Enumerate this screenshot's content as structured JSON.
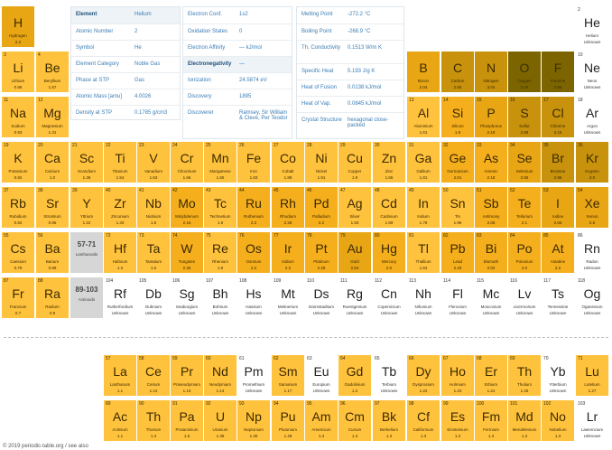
{
  "colors": {
    "lightest": "#ffd04d",
    "light": "#ffc23d",
    "mid": "#f5ae1c",
    "dark": "#e8a514",
    "darker": "#c8920c",
    "darkest": "#7c6500",
    "unknown": "#ffffff",
    "placeholder": "#d6d6d6"
  },
  "elements": [
    {
      "n": "",
      "s": "H",
      "name": "Hydrogen",
      "en": "2.2",
      "c": "dark",
      "r": 1,
      "col": 1
    },
    {
      "n": "2",
      "s": "He",
      "name": "Helium",
      "en": "Unknown",
      "c": "un",
      "r": 1,
      "col": 18
    },
    {
      "n": "3",
      "s": "Li",
      "name": "Lithium",
      "en": "0.98",
      "c": "light",
      "r": 2,
      "col": 1
    },
    {
      "n": "4",
      "s": "Be",
      "name": "Beryllium",
      "en": "1.57",
      "c": "light",
      "r": 2,
      "col": 2
    },
    {
      "n": "",
      "s": "B",
      "name": "Boron",
      "en": "2.04",
      "c": "dark",
      "r": 2,
      "col": 13
    },
    {
      "n": "",
      "s": "C",
      "name": "Carbon",
      "en": "2.55",
      "c": "darker",
      "r": 2,
      "col": 14
    },
    {
      "n": "",
      "s": "N",
      "name": "Nitrogen",
      "en": "3.04",
      "c": "darker",
      "r": 2,
      "col": 15
    },
    {
      "n": "",
      "s": "O",
      "name": "Oxygen",
      "en": "3.44",
      "c": "darkest",
      "r": 2,
      "col": 16
    },
    {
      "n": "",
      "s": "F",
      "name": "Fluorine",
      "en": "3.98",
      "c": "darkest",
      "r": 2,
      "col": 17
    },
    {
      "n": "10",
      "s": "Ne",
      "name": "Neon",
      "en": "Unknown",
      "c": "un",
      "r": 2,
      "col": 18
    },
    {
      "n": "11",
      "s": "Na",
      "name": "Sodium",
      "en": "0.93",
      "c": "light",
      "r": 3,
      "col": 1
    },
    {
      "n": "12",
      "s": "Mg",
      "name": "Magnesium",
      "en": "1.31",
      "c": "light",
      "r": 3,
      "col": 2
    },
    {
      "n": "13",
      "s": "Al",
      "name": "Aluminium",
      "en": "1.61",
      "c": "light",
      "r": 3,
      "col": 13
    },
    {
      "n": "14",
      "s": "Si",
      "name": "Silicon",
      "en": "1.9",
      "c": "mid",
      "r": 3,
      "col": 14
    },
    {
      "n": "15",
      "s": "P",
      "name": "Phosphorus",
      "en": "2.19",
      "c": "dark",
      "r": 3,
      "col": 15
    },
    {
      "n": "16",
      "s": "S",
      "name": "Sulfur",
      "en": "2.58",
      "c": "darker",
      "r": 3,
      "col": 16
    },
    {
      "n": "17",
      "s": "Cl",
      "name": "Chlorine",
      "en": "3.16",
      "c": "darker",
      "r": 3,
      "col": 17
    },
    {
      "n": "18",
      "s": "Ar",
      "name": "Argon",
      "en": "Unknown",
      "c": "un",
      "r": 3,
      "col": 18
    },
    {
      "n": "19",
      "s": "K",
      "name": "Potassium",
      "en": "0.82",
      "c": "light",
      "r": 4,
      "col": 1
    },
    {
      "n": "20",
      "s": "Ca",
      "name": "Calcium",
      "en": "1.0",
      "c": "light",
      "r": 4,
      "col": 2
    },
    {
      "n": "21",
      "s": "Sc",
      "name": "Scandium",
      "en": "1.36",
      "c": "light",
      "r": 4,
      "col": 3
    },
    {
      "n": "22",
      "s": "Ti",
      "name": "Titanium",
      "en": "1.54",
      "c": "light",
      "r": 4,
      "col": 4
    },
    {
      "n": "23",
      "s": "V",
      "name": "Vanadium",
      "en": "1.63",
      "c": "light",
      "r": 4,
      "col": 5
    },
    {
      "n": "24",
      "s": "Cr",
      "name": "Chromium",
      "en": "1.66",
      "c": "light",
      "r": 4,
      "col": 6
    },
    {
      "n": "25",
      "s": "Mn",
      "name": "Manganese",
      "en": "1.55",
      "c": "light",
      "r": 4,
      "col": 7
    },
    {
      "n": "26",
      "s": "Fe",
      "name": "Iron",
      "en": "1.83",
      "c": "light",
      "r": 4,
      "col": 8
    },
    {
      "n": "27",
      "s": "Co",
      "name": "Cobalt",
      "en": "1.88",
      "c": "light",
      "r": 4,
      "col": 9
    },
    {
      "n": "28",
      "s": "Ni",
      "name": "Nickel",
      "en": "1.91",
      "c": "light",
      "r": 4,
      "col": 10
    },
    {
      "n": "29",
      "s": "Cu",
      "name": "Copper",
      "en": "1.9",
      "c": "light",
      "r": 4,
      "col": 11
    },
    {
      "n": "30",
      "s": "Zn",
      "name": "Zinc",
      "en": "1.65",
      "c": "light",
      "r": 4,
      "col": 12
    },
    {
      "n": "31",
      "s": "Ga",
      "name": "Gallium",
      "en": "1.81",
      "c": "light",
      "r": 4,
      "col": 13
    },
    {
      "n": "32",
      "s": "Ge",
      "name": "Germanium",
      "en": "2.01",
      "c": "mid",
      "r": 4,
      "col": 14
    },
    {
      "n": "33",
      "s": "As",
      "name": "Arsenic",
      "en": "2.18",
      "c": "mid",
      "r": 4,
      "col": 15
    },
    {
      "n": "34",
      "s": "Se",
      "name": "Selenium",
      "en": "2.55",
      "c": "dark",
      "r": 4,
      "col": 16
    },
    {
      "n": "35",
      "s": "Br",
      "name": "Bromine",
      "en": "2.96",
      "c": "darker",
      "r": 4,
      "col": 17
    },
    {
      "n": "36",
      "s": "Kr",
      "name": "Krypton",
      "en": "3.0",
      "c": "darker",
      "r": 4,
      "col": 18
    },
    {
      "n": "37",
      "s": "Rb",
      "name": "Rubidium",
      "en": "0.82",
      "c": "light",
      "r": 5,
      "col": 1
    },
    {
      "n": "38",
      "s": "Sr",
      "name": "Strontium",
      "en": "0.95",
      "c": "light",
      "r": 5,
      "col": 2
    },
    {
      "n": "39",
      "s": "Y",
      "name": "Yttrium",
      "en": "1.22",
      "c": "light",
      "r": 5,
      "col": 3
    },
    {
      "n": "40",
      "s": "Zr",
      "name": "Zirconium",
      "en": "1.33",
      "c": "light",
      "r": 5,
      "col": 4
    },
    {
      "n": "41",
      "s": "Nb",
      "name": "Niobium",
      "en": "1.6",
      "c": "light",
      "r": 5,
      "col": 5
    },
    {
      "n": "42",
      "s": "Mo",
      "name": "Molybdenum",
      "en": "2.16",
      "c": "mid",
      "r": 5,
      "col": 6
    },
    {
      "n": "43",
      "s": "Tc",
      "name": "Technetium",
      "en": "1.9",
      "c": "light",
      "r": 5,
      "col": 7
    },
    {
      "n": "44",
      "s": "Ru",
      "name": "Ruthenium",
      "en": "2.2",
      "c": "mid",
      "r": 5,
      "col": 8
    },
    {
      "n": "45",
      "s": "Rh",
      "name": "Rhodium",
      "en": "2.28",
      "c": "mid",
      "r": 5,
      "col": 9
    },
    {
      "n": "46",
      "s": "Pd",
      "name": "Palladium",
      "en": "2.2",
      "c": "mid",
      "r": 5,
      "col": 10
    },
    {
      "n": "47",
      "s": "Ag",
      "name": "Silver",
      "en": "1.93",
      "c": "light",
      "r": 5,
      "col": 11
    },
    {
      "n": "48",
      "s": "Cd",
      "name": "Cadmium",
      "en": "1.69",
      "c": "light",
      "r": 5,
      "col": 12
    },
    {
      "n": "49",
      "s": "In",
      "name": "Indium",
      "en": "1.78",
      "c": "light",
      "r": 5,
      "col": 13
    },
    {
      "n": "50",
      "s": "Sn",
      "name": "Tin",
      "en": "1.96",
      "c": "light",
      "r": 5,
      "col": 14
    },
    {
      "n": "51",
      "s": "Sb",
      "name": "Antimony",
      "en": "2.05",
      "c": "mid",
      "r": 5,
      "col": 15
    },
    {
      "n": "52",
      "s": "Te",
      "name": "Tellurium",
      "en": "2.1",
      "c": "mid",
      "r": 5,
      "col": 16
    },
    {
      "n": "53",
      "s": "I",
      "name": "Iodine",
      "en": "2.66",
      "c": "dark",
      "r": 5,
      "col": 17
    },
    {
      "n": "54",
      "s": "Xe",
      "name": "Xenon",
      "en": "2.6",
      "c": "dark",
      "r": 5,
      "col": 18
    },
    {
      "n": "55",
      "s": "Cs",
      "name": "Caesium",
      "en": "0.79",
      "c": "light",
      "r": 6,
      "col": 1
    },
    {
      "n": "56",
      "s": "Ba",
      "name": "Barium",
      "en": "0.89",
      "c": "light",
      "r": 6,
      "col": 2
    },
    {
      "n": "72",
      "s": "Hf",
      "name": "Hafnium",
      "en": "1.3",
      "c": "light",
      "r": 6,
      "col": 4
    },
    {
      "n": "73",
      "s": "Ta",
      "name": "Tantalum",
      "en": "1.5",
      "c": "light",
      "r": 6,
      "col": 5
    },
    {
      "n": "74",
      "s": "W",
      "name": "Tungsten",
      "en": "2.36",
      "c": "mid",
      "r": 6,
      "col": 6
    },
    {
      "n": "75",
      "s": "Re",
      "name": "Rhenium",
      "en": "1.9",
      "c": "light",
      "r": 6,
      "col": 7
    },
    {
      "n": "76",
      "s": "Os",
      "name": "Osmium",
      "en": "2.2",
      "c": "mid",
      "r": 6,
      "col": 8
    },
    {
      "n": "77",
      "s": "Ir",
      "name": "Iridium",
      "en": "2.2",
      "c": "mid",
      "r": 6,
      "col": 9
    },
    {
      "n": "78",
      "s": "Pt",
      "name": "Platinum",
      "en": "2.28",
      "c": "mid",
      "r": 6,
      "col": 10
    },
    {
      "n": "79",
      "s": "Au",
      "name": "Gold",
      "en": "2.54",
      "c": "dark",
      "r": 6,
      "col": 11
    },
    {
      "n": "80",
      "s": "Hg",
      "name": "Mercury",
      "en": "2.0",
      "c": "mid",
      "r": 6,
      "col": 12
    },
    {
      "n": "81",
      "s": "Tl",
      "name": "Thallium",
      "en": "1.62",
      "c": "light",
      "r": 6,
      "col": 13
    },
    {
      "n": "82",
      "s": "Pb",
      "name": "Lead",
      "en": "2.33",
      "c": "mid",
      "r": 6,
      "col": 14
    },
    {
      "n": "83",
      "s": "Bi",
      "name": "Bismuth",
      "en": "2.02",
      "c": "mid",
      "r": 6,
      "col": 15
    },
    {
      "n": "84",
      "s": "Po",
      "name": "Polonium",
      "en": "2.0",
      "c": "mid",
      "r": 6,
      "col": 16
    },
    {
      "n": "85",
      "s": "At",
      "name": "Astatine",
      "en": "2.2",
      "c": "mid",
      "r": 6,
      "col": 17
    },
    {
      "n": "86",
      "s": "Rn",
      "name": "Radon",
      "en": "Unknown",
      "c": "un",
      "r": 6,
      "col": 18
    },
    {
      "n": "87",
      "s": "Fr",
      "name": "Francium",
      "en": "0.7",
      "c": "light",
      "r": 7,
      "col": 1
    },
    {
      "n": "88",
      "s": "Ra",
      "name": "Radium",
      "en": "0.9",
      "c": "light",
      "r": 7,
      "col": 2
    },
    {
      "n": "104",
      "s": "Rf",
      "name": "Rutherfordium",
      "en": "Unknown",
      "c": "un",
      "r": 7,
      "col": 4
    },
    {
      "n": "105",
      "s": "Db",
      "name": "Dubnium",
      "en": "Unknown",
      "c": "un",
      "r": 7,
      "col": 5
    },
    {
      "n": "106",
      "s": "Sg",
      "name": "Seaborgium",
      "en": "Unknown",
      "c": "un",
      "r": 7,
      "col": 6
    },
    {
      "n": "107",
      "s": "Bh",
      "name": "Bohrium",
      "en": "Unknown",
      "c": "un",
      "r": 7,
      "col": 7
    },
    {
      "n": "108",
      "s": "Hs",
      "name": "Hassium",
      "en": "Unknown",
      "c": "un",
      "r": 7,
      "col": 8
    },
    {
      "n": "109",
      "s": "Mt",
      "name": "Meitnerium",
      "en": "Unknown",
      "c": "un",
      "r": 7,
      "col": 9
    },
    {
      "n": "110",
      "s": "Ds",
      "name": "Darmstadtium",
      "en": "Unknown",
      "c": "un",
      "r": 7,
      "col": 10
    },
    {
      "n": "111",
      "s": "Rg",
      "name": "Roentgenium",
      "en": "Unknown",
      "c": "un",
      "r": 7,
      "col": 11
    },
    {
      "n": "112",
      "s": "Cn",
      "name": "Copernicium",
      "en": "Unknown",
      "c": "un",
      "r": 7,
      "col": 12
    },
    {
      "n": "113",
      "s": "Nh",
      "name": "Nihonium",
      "en": "Unknown",
      "c": "un",
      "r": 7,
      "col": 13
    },
    {
      "n": "114",
      "s": "Fl",
      "name": "Flerovium",
      "en": "Unknown",
      "c": "un",
      "r": 7,
      "col": 14
    },
    {
      "n": "115",
      "s": "Mc",
      "name": "Moscovium",
      "en": "Unknown",
      "c": "un",
      "r": 7,
      "col": 15
    },
    {
      "n": "116",
      "s": "Lv",
      "name": "Livermorium",
      "en": "Unknown",
      "c": "un",
      "r": 7,
      "col": 16
    },
    {
      "n": "117",
      "s": "Ts",
      "name": "Tennessine",
      "en": "Unknown",
      "c": "un",
      "r": 7,
      "col": 17
    },
    {
      "n": "118",
      "s": "Og",
      "name": "Oganesson",
      "en": "Unknown",
      "c": "un",
      "r": 7,
      "col": 18
    },
    {
      "n": "57",
      "s": "La",
      "name": "Lanthanum",
      "en": "1.1",
      "c": "light",
      "r": 9,
      "col": 4
    },
    {
      "n": "58",
      "s": "Ce",
      "name": "Cerium",
      "en": "1.12",
      "c": "light",
      "r": 9,
      "col": 5
    },
    {
      "n": "59",
      "s": "Pr",
      "name": "Praseodymium",
      "en": "1.13",
      "c": "light",
      "r": 9,
      "col": 6
    },
    {
      "n": "60",
      "s": "Nd",
      "name": "Neodymium",
      "en": "1.14",
      "c": "light",
      "r": 9,
      "col": 7
    },
    {
      "n": "61",
      "s": "Pm",
      "name": "Promethium",
      "en": "Unknown",
      "c": "un",
      "r": 9,
      "col": 8
    },
    {
      "n": "62",
      "s": "Sm",
      "name": "Samarium",
      "en": "1.17",
      "c": "light",
      "r": 9,
      "col": 9
    },
    {
      "n": "63",
      "s": "Eu",
      "name": "Europium",
      "en": "Unknown",
      "c": "un",
      "r": 9,
      "col": 10
    },
    {
      "n": "64",
      "s": "Gd",
      "name": "Gadolinium",
      "en": "1.2",
      "c": "light",
      "r": 9,
      "col": 11
    },
    {
      "n": "65",
      "s": "Tb",
      "name": "Terbium",
      "en": "Unknown",
      "c": "un",
      "r": 9,
      "col": 12
    },
    {
      "n": "66",
      "s": "Dy",
      "name": "Dysprosium",
      "en": "1.22",
      "c": "light",
      "r": 9,
      "col": 13
    },
    {
      "n": "67",
      "s": "Ho",
      "name": "Holmium",
      "en": "1.23",
      "c": "light",
      "r": 9,
      "col": 14
    },
    {
      "n": "68",
      "s": "Er",
      "name": "Erbium",
      "en": "1.24",
      "c": "light",
      "r": 9,
      "col": 15
    },
    {
      "n": "69",
      "s": "Th",
      "name": "Thulium",
      "en": "1.25",
      "c": "light",
      "r": 9,
      "col": 16
    },
    {
      "n": "70",
      "s": "Yb",
      "name": "Ytterbium",
      "en": "Unknown",
      "c": "un",
      "r": 9,
      "col": 17
    },
    {
      "n": "71",
      "s": "Lu",
      "name": "Lutetium",
      "en": "1.27",
      "c": "light",
      "r": 9,
      "col": 18
    },
    {
      "n": "89",
      "s": "Ac",
      "name": "Actinium",
      "en": "1.1",
      "c": "light",
      "r": 10,
      "col": 4
    },
    {
      "n": "90",
      "s": "Th",
      "name": "Thorium",
      "en": "1.3",
      "c": "light",
      "r": 10,
      "col": 5
    },
    {
      "n": "91",
      "s": "Pa",
      "name": "Protactinium",
      "en": "1.5",
      "c": "light",
      "r": 10,
      "col": 6
    },
    {
      "n": "92",
      "s": "U",
      "name": "Uranium",
      "en": "1.38",
      "c": "light",
      "r": 10,
      "col": 7
    },
    {
      "n": "93",
      "s": "Np",
      "name": "Neptunium",
      "en": "1.36",
      "c": "light",
      "r": 10,
      "col": 8
    },
    {
      "n": "94",
      "s": "Pu",
      "name": "Plutonium",
      "en": "1.28",
      "c": "light",
      "r": 10,
      "col": 9
    },
    {
      "n": "95",
      "s": "Am",
      "name": "Americium",
      "en": "1.3",
      "c": "light",
      "r": 10,
      "col": 10
    },
    {
      "n": "96",
      "s": "Cm",
      "name": "Curium",
      "en": "1.3",
      "c": "light",
      "r": 10,
      "col": 11
    },
    {
      "n": "97",
      "s": "Bk",
      "name": "Berkelium",
      "en": "1.3",
      "c": "light",
      "r": 10,
      "col": 12
    },
    {
      "n": "98",
      "s": "Cf",
      "name": "Californium",
      "en": "1.3",
      "c": "light",
      "r": 10,
      "col": 13
    },
    {
      "n": "99",
      "s": "Es",
      "name": "Einsteinium",
      "en": "1.3",
      "c": "light",
      "r": 10,
      "col": 14
    },
    {
      "n": "100",
      "s": "Fm",
      "name": "Fermium",
      "en": "1.3",
      "c": "light",
      "r": 10,
      "col": 15
    },
    {
      "n": "101",
      "s": "Md",
      "name": "Mendelevium",
      "en": "1.3",
      "c": "light",
      "r": 10,
      "col": 16
    },
    {
      "n": "102",
      "s": "No",
      "name": "Nobelium",
      "en": "1.3",
      "c": "light",
      "r": 10,
      "col": 17
    },
    {
      "n": "103",
      "s": "Lr",
      "name": "Lawrencium",
      "en": "Unknown",
      "c": "un",
      "r": 10,
      "col": 18
    }
  ],
  "placeholders": [
    {
      "s": "57-71",
      "name": "Lanthanoids",
      "r": 6,
      "col": 3
    },
    {
      "s": "89-103",
      "name": "Actinoids",
      "r": 7,
      "col": 3
    }
  ],
  "info": {
    "panel1": [
      {
        "label": "Element",
        "value": "Helium",
        "hl": true
      },
      {
        "label": "Atomic Number",
        "value": "2"
      },
      {
        "label": "Symbol",
        "value": "He"
      },
      {
        "label": "Element Category",
        "value": "Noble Gas"
      },
      {
        "label": "Phase at STP",
        "value": "Gas"
      },
      {
        "label": "Atomic Mass [amu]",
        "value": "4.0026"
      },
      {
        "label": "Density at STP",
        "value": "0.1785 g/cm3"
      }
    ],
    "panel2": [
      {
        "label": "Electron Conf.",
        "value": "1s2"
      },
      {
        "label": "Oxidation States",
        "value": "0"
      },
      {
        "label": "Electron Affinity",
        "value": "— kJ/mol"
      },
      {
        "label": "Electronegativity",
        "value": "—",
        "hl": true
      },
      {
        "label": "Ionization",
        "value": "24.5874 eV"
      },
      {
        "label": "Discovery",
        "value": "1895"
      },
      {
        "label": "Discoverer",
        "value": "Ramsey, Sir William & Cleve, Per Teodor"
      }
    ],
    "panel3": [
      {
        "label": "Melting Point",
        "value": "-272.2 °C"
      },
      {
        "label": "Boiling Point",
        "value": "-268.9 °C"
      },
      {
        "label": "Th. Conductivity",
        "value": "0.1513 W/m K"
      },
      {
        "label": "Specific Heat",
        "value": "5.193 J/g K"
      },
      {
        "label": "Heat of Fusion",
        "value": "0.0138 kJ/mol"
      },
      {
        "label": "Heat of Vap.",
        "value": "0.0845 kJ/mol"
      },
      {
        "label": "Crystal Structure",
        "value": "hexagonal close-packed"
      }
    ]
  },
  "footer": "© 2019 periodic-table.org / see also"
}
